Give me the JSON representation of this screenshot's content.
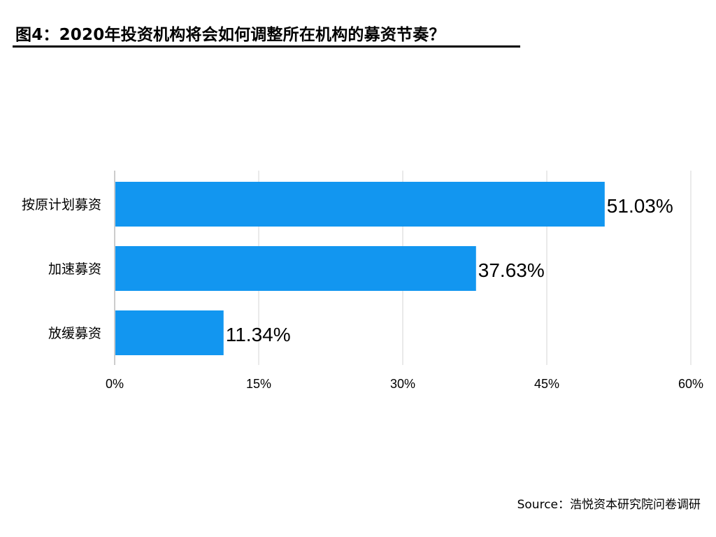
{
  "chart_data": {
    "type": "bar",
    "orientation": "horizontal",
    "title": "图4：2020年投资机构将会如何调整所在机构的募资节奏？",
    "categories": [
      "按原计划募资",
      "加速募资",
      "放缓募资"
    ],
    "values": [
      51.03,
      37.63,
      11.34
    ],
    "value_labels": [
      "51.03%",
      "37.63%",
      "11.34%"
    ],
    "xlim": [
      0,
      60
    ],
    "x_ticks": [
      0,
      15,
      30,
      45,
      60
    ],
    "x_tick_labels": [
      "0%",
      "15%",
      "30%",
      "45%",
      "60%"
    ],
    "grid": "vertical",
    "bar_color": "#1296f0",
    "source": "Source：浩悦资本研究院问卷调研"
  }
}
